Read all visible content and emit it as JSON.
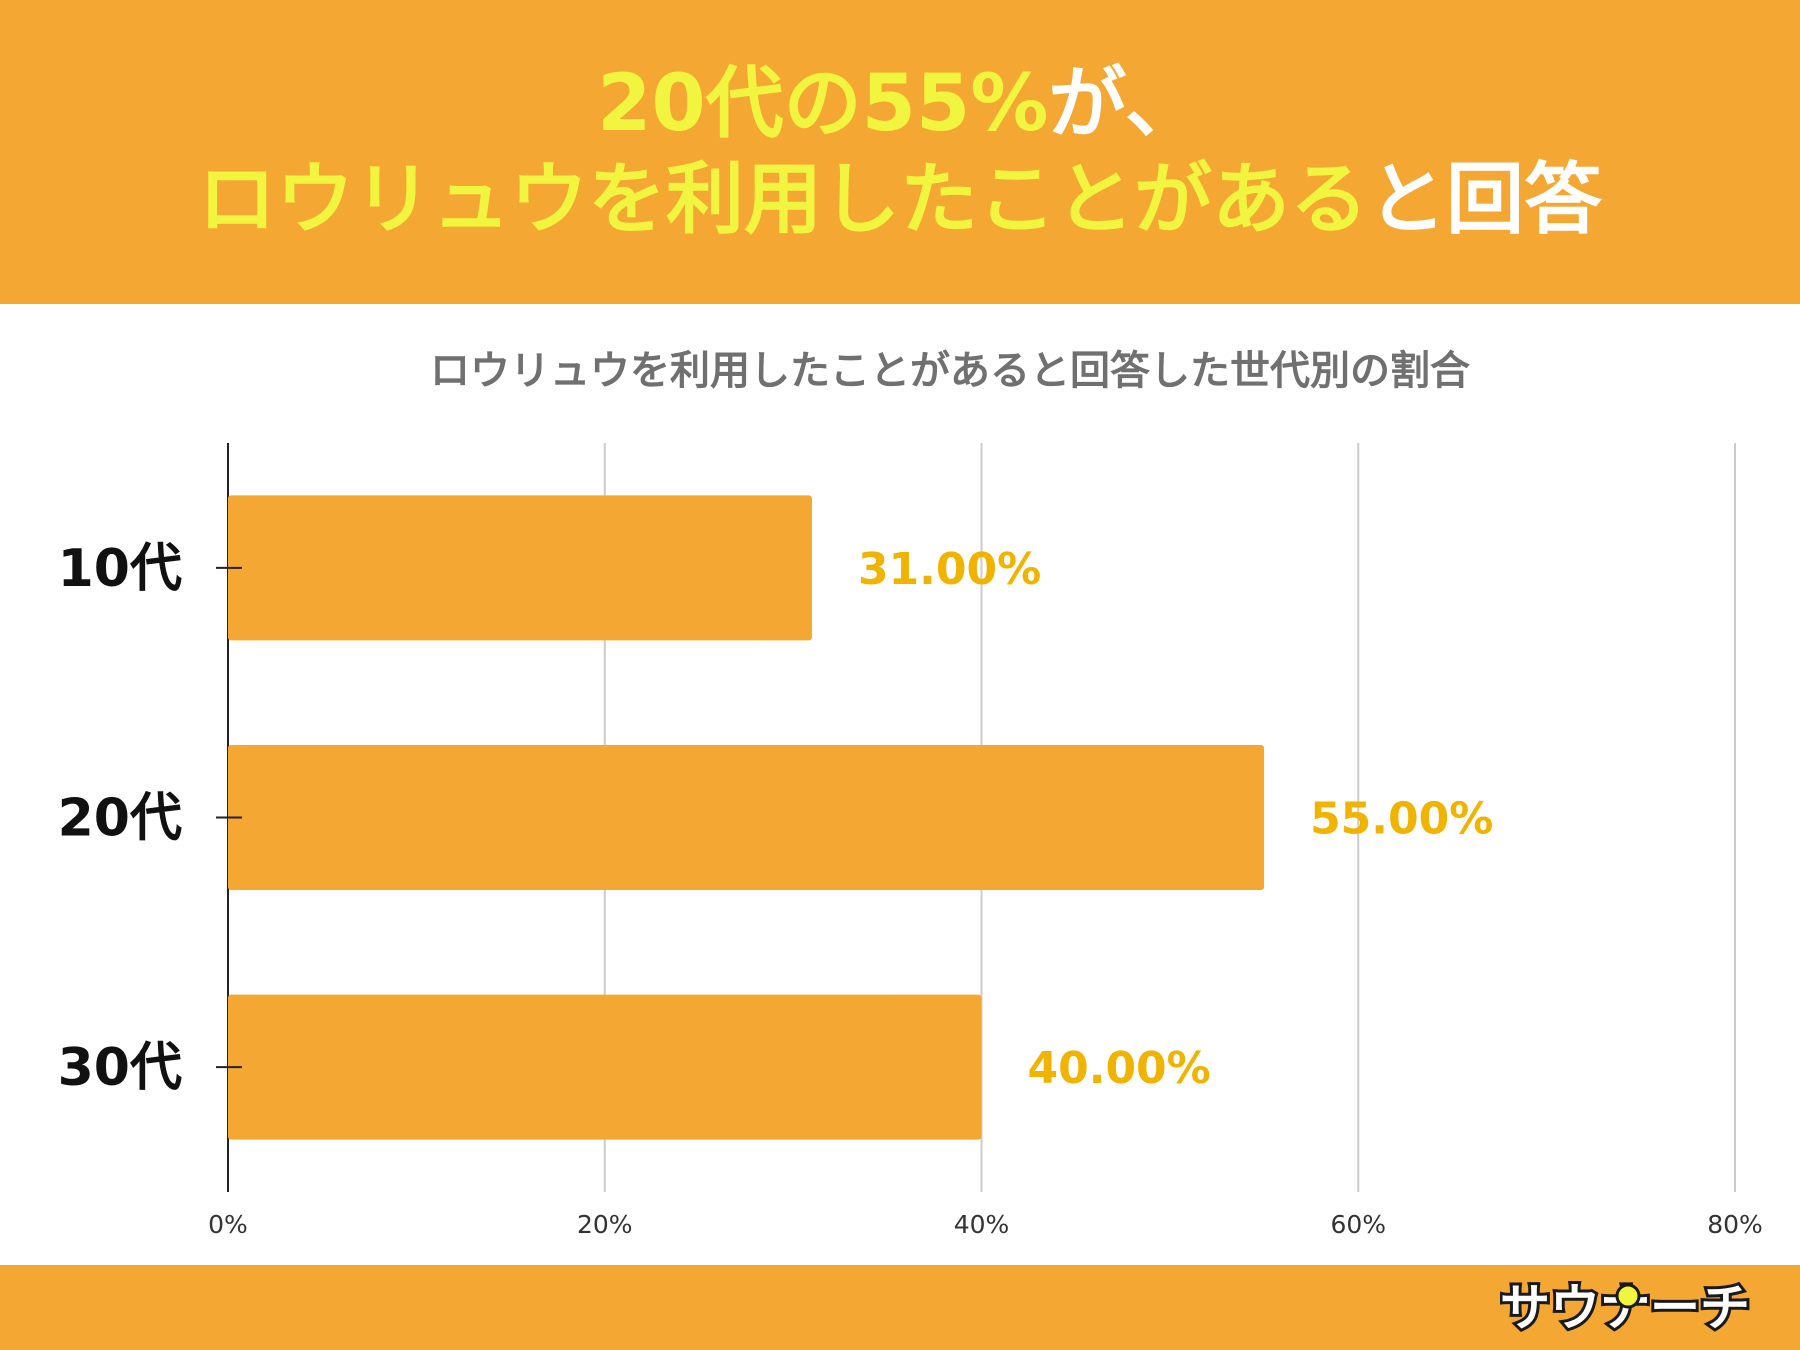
{
  "headline": {
    "line1_highlight": "20代の55%",
    "line1_rest": "が、",
    "line2_highlight": "ロウリュウを利用したことがある",
    "line2_rest": "と回答"
  },
  "colors": {
    "banner": "#f4a733",
    "bar": "#f4a733",
    "headline_highlight": "#f2f53f",
    "data_label": "#f0b400",
    "title_gray": "#707070"
  },
  "chart_data": {
    "type": "bar",
    "orientation": "horizontal",
    "title": "ロウリュウを利用したことがあると回答した世代別の割合",
    "categories": [
      "10代",
      "20代",
      "30代"
    ],
    "values": [
      31,
      55,
      40
    ],
    "data_labels": [
      "31.00%",
      "55.00%",
      "40.00%"
    ],
    "xlim": [
      0,
      80
    ],
    "xticks": [
      0,
      20,
      40,
      60,
      80
    ],
    "xtick_labels": [
      "0%",
      "20%",
      "40%",
      "60%",
      "80%"
    ],
    "grid": true
  },
  "logo": {
    "text": "サウナーチ"
  }
}
